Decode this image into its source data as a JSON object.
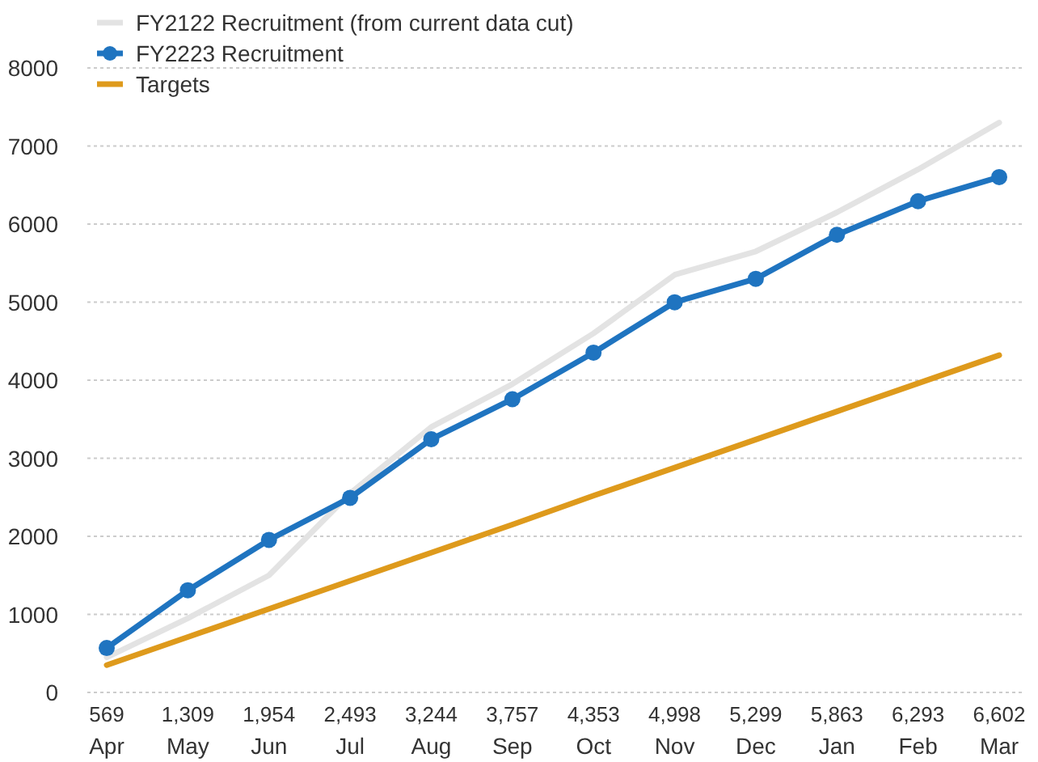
{
  "chart_data": {
    "type": "line",
    "categories": [
      "Apr",
      "May",
      "Jun",
      "Jul",
      "Aug",
      "Sep",
      "Oct",
      "Nov",
      "Dec",
      "Jan",
      "Feb",
      "Mar"
    ],
    "series": [
      {
        "name": "FY2122 Recruitment (from current data cut)",
        "color": "#e3e3e3",
        "marker": "none",
        "values": [
          450,
          950,
          1500,
          2550,
          3400,
          3950,
          4600,
          5350,
          5650,
          6150,
          6700,
          7300
        ]
      },
      {
        "name": "FY2223 Recruitment",
        "color": "#1f74c0",
        "marker": "circle",
        "values": [
          569,
          1309,
          1954,
          2493,
          3244,
          3757,
          4353,
          4998,
          5299,
          5863,
          6293,
          6602
        ],
        "value_labels": [
          "569",
          "1,309",
          "1,954",
          "2,493",
          "3,244",
          "3,757",
          "4,353",
          "4,998",
          "5,299",
          "5,863",
          "6,293",
          "6,602"
        ]
      },
      {
        "name": "Targets",
        "color": "#de9a1c",
        "marker": "none",
        "values": [
          350,
          710,
          1070,
          1430,
          1790,
          2150,
          2520,
          2880,
          3240,
          3600,
          3960,
          4320
        ]
      }
    ],
    "ylim": [
      0,
      8000
    ],
    "yticks": [
      0,
      1000,
      2000,
      3000,
      4000,
      5000,
      6000,
      7000,
      8000
    ],
    "grid": "y",
    "legend": "top left",
    "line_style": "solid"
  }
}
